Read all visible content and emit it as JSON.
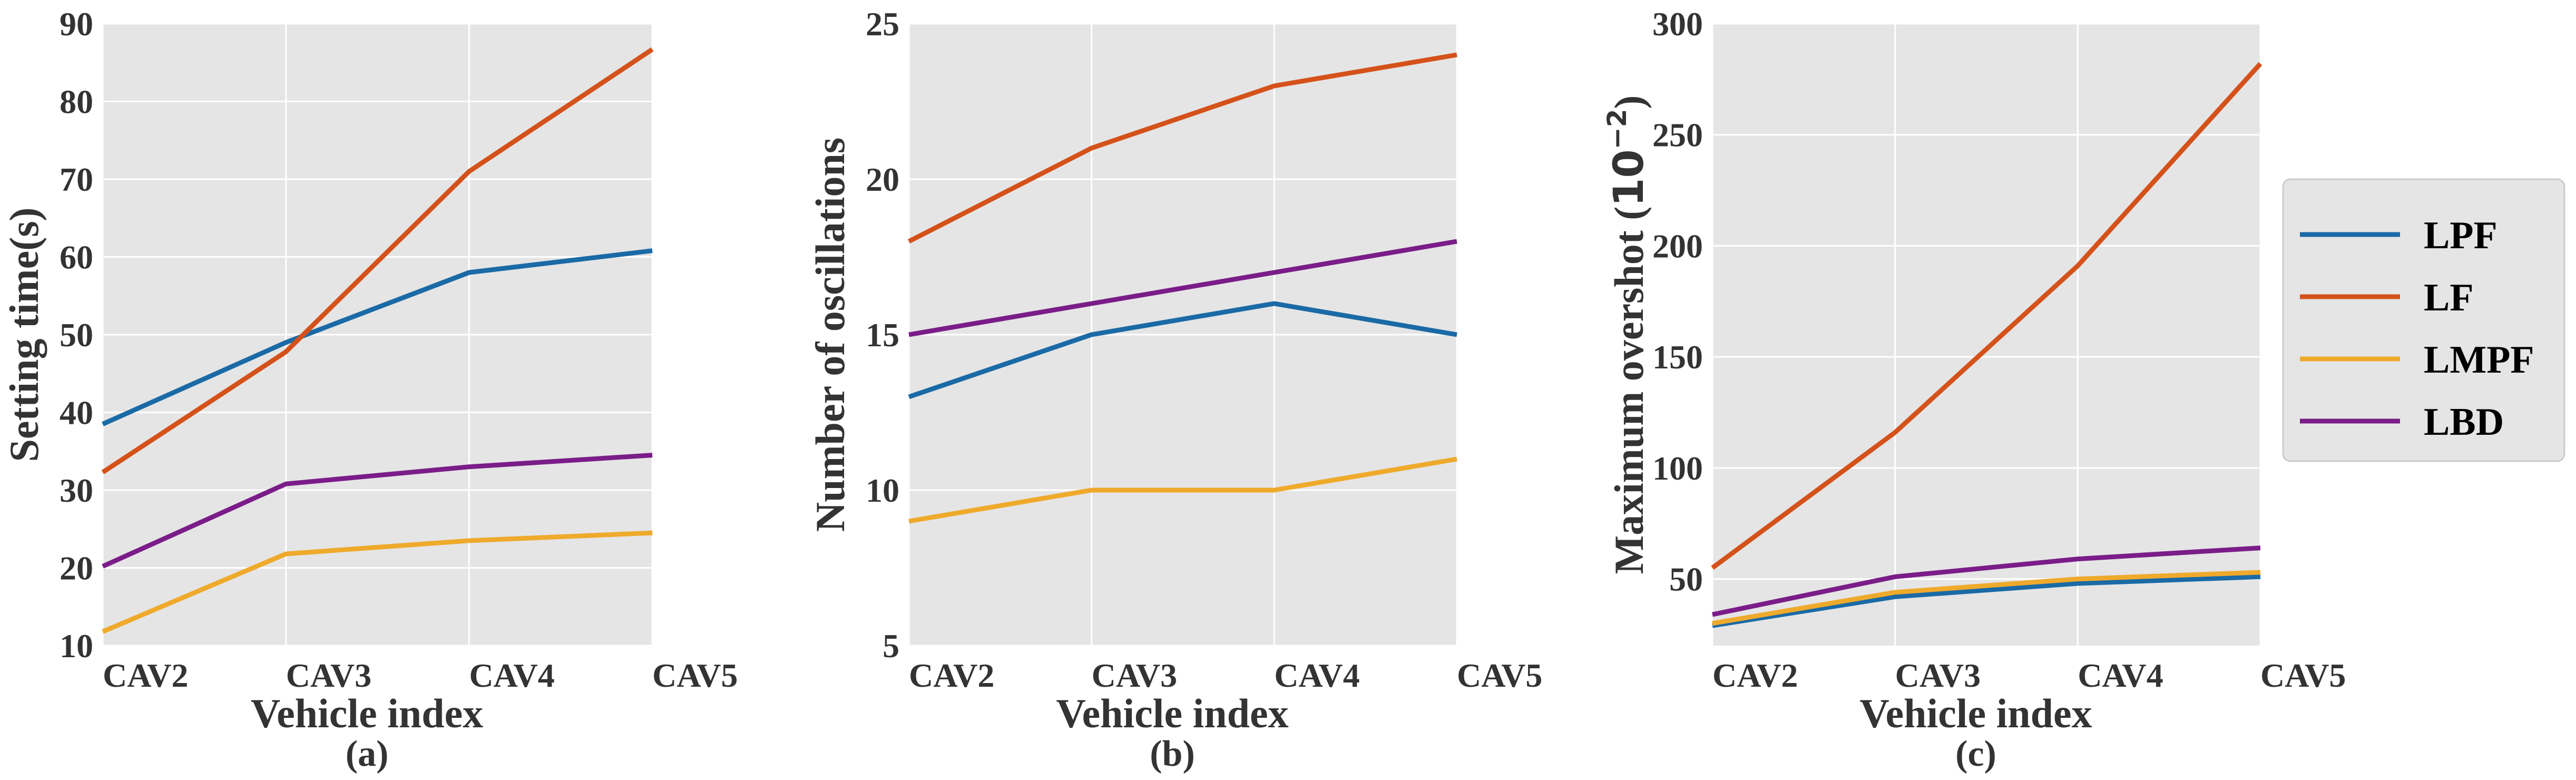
{
  "colors": {
    "panel_bg": "#e5e5e5",
    "grid": "#ffffff",
    "text": "#333333"
  },
  "legend": {
    "placement": "right",
    "entries": [
      {
        "name": "LPF",
        "color": "#1a6aa6"
      },
      {
        "name": "LF",
        "color": "#d4521a"
      },
      {
        "name": "LMPF",
        "color": "#efaa2c"
      },
      {
        "name": "LBD",
        "color": "#7a1d88"
      }
    ]
  },
  "chart_data": [
    {
      "type": "line",
      "caption": "(a)",
      "xlabel": "Vehicle index",
      "ylabel": "Setting time(s)",
      "categories": [
        "CAV2",
        "CAV3",
        "CAV4",
        "CAV5"
      ],
      "ylim": [
        10,
        90
      ],
      "yticks": [
        10,
        20,
        30,
        40,
        50,
        60,
        70,
        80,
        90
      ],
      "grid": true,
      "series": [
        {
          "name": "LPF",
          "values": [
            38.5,
            49,
            58,
            60.8
          ]
        },
        {
          "name": "LF",
          "values": [
            32.3,
            47.8,
            71.0,
            86.7
          ]
        },
        {
          "name": "LMPF",
          "values": [
            11.8,
            21.8,
            23.5,
            24.5
          ]
        },
        {
          "name": "LBD",
          "values": [
            20.2,
            30.8,
            33.0,
            34.5
          ]
        }
      ]
    },
    {
      "type": "line",
      "caption": "(b)",
      "xlabel": "Vehicle index",
      "ylabel": "Number of oscillations",
      "categories": [
        "CAV2",
        "CAV3",
        "CAV4",
        "CAV5"
      ],
      "ylim": [
        5,
        25
      ],
      "yticks": [
        5,
        10,
        15,
        20,
        25
      ],
      "grid": true,
      "series": [
        {
          "name": "LPF",
          "values": [
            13,
            15,
            16,
            15
          ]
        },
        {
          "name": "LF",
          "values": [
            18,
            21,
            23,
            24
          ]
        },
        {
          "name": "LMPF",
          "values": [
            9,
            10,
            10,
            11
          ]
        },
        {
          "name": "LBD",
          "values": [
            15,
            16,
            17,
            18
          ]
        }
      ]
    },
    {
      "type": "line",
      "caption": "(c)",
      "xlabel": "Vehicle index",
      "ylabel": "Maximum overshot (",
      "ylabel_base": "10",
      "ylabel_exp": "−2",
      "ylabel_close": ")",
      "categories": [
        "CAV2",
        "CAV3",
        "CAV4",
        "CAV5"
      ],
      "ylim": [
        20,
        300
      ],
      "yticks": [
        50,
        100,
        150,
        200,
        250,
        300
      ],
      "grid": true,
      "series": [
        {
          "name": "LPF",
          "values": [
            29,
            42,
            48,
            51
          ]
        },
        {
          "name": "LF",
          "values": [
            55,
            116,
            191,
            282
          ]
        },
        {
          "name": "LMPF",
          "values": [
            30,
            44,
            50,
            53
          ]
        },
        {
          "name": "LBD",
          "values": [
            34,
            51,
            59,
            64
          ]
        }
      ]
    }
  ]
}
